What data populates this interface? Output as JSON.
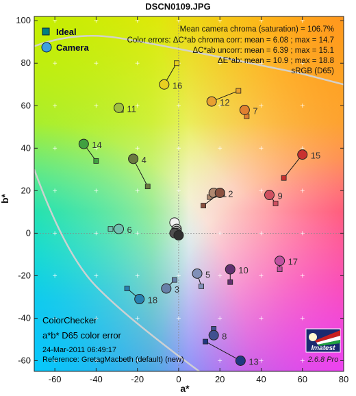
{
  "chart_data": {
    "type": "scatter",
    "title": "DSCN0109.JPG",
    "xlabel": "a*",
    "ylabel": "b*",
    "xlim": [
      -70,
      80
    ],
    "ylim": [
      -65,
      102
    ],
    "xticks": [
      -60,
      -40,
      -20,
      0,
      20,
      40,
      60,
      80
    ],
    "yticks": [
      -60,
      -40,
      -20,
      0,
      20,
      40,
      60,
      80,
      100
    ],
    "legend": {
      "position": "top-left",
      "items": [
        {
          "name": "Ideal",
          "marker": "square"
        },
        {
          "name": "Camera",
          "marker": "circle"
        }
      ]
    },
    "stats": [
      "Mean camera chroma (saturation) = 106.7%",
      "Color errors: ΔC*ab chroma corr:  mean = 6.08 ;  max = 14.7",
      "ΔC*ab uncorr:  mean = 6.39 ;  max = 15.1",
      "ΔE*ab:  mean = 10.9 ;  max = 18.8",
      "sRGB (D65)"
    ],
    "patches": [
      {
        "id": "1",
        "ideal": [
          15,
          17
        ],
        "camera": [
          17,
          19
        ],
        "color": "#b08870"
      },
      {
        "id": "2",
        "ideal": [
          12,
          13
        ],
        "camera": [
          20,
          19
        ],
        "color": "#8a5040"
      },
      {
        "id": "3",
        "ideal": [
          -2,
          -22
        ],
        "camera": [
          -6,
          -26
        ],
        "color": "#6880a8"
      },
      {
        "id": "4",
        "ideal": [
          -15,
          22
        ],
        "camera": [
          -22,
          35
        ],
        "color": "#6a7a40"
      },
      {
        "id": "5",
        "ideal": [
          11,
          -25
        ],
        "camera": [
          9,
          -19
        ],
        "color": "#8090b8"
      },
      {
        "id": "6",
        "ideal": [
          -33,
          2
        ],
        "camera": [
          -29,
          2
        ],
        "color": "#70c0b0"
      },
      {
        "id": "7",
        "ideal": [
          33,
          55
        ],
        "camera": [
          32,
          58
        ],
        "color": "#e08030"
      },
      {
        "id": "8",
        "ideal": [
          17,
          -45
        ],
        "camera": [
          17,
          -48
        ],
        "color": "#405090"
      },
      {
        "id": "9",
        "ideal": [
          47,
          14
        ],
        "camera": [
          44,
          18
        ],
        "color": "#d05060"
      },
      {
        "id": "10",
        "ideal": [
          25,
          -23
        ],
        "camera": [
          25,
          -17
        ],
        "color": "#603070"
      },
      {
        "id": "11",
        "ideal": [
          -28,
          58
        ],
        "camera": [
          -29,
          59
        ],
        "color": "#a0c040"
      },
      {
        "id": "12",
        "ideal": [
          29,
          67
        ],
        "camera": [
          16,
          62
        ],
        "color": "#e8a030"
      },
      {
        "id": "13",
        "ideal": [
          13,
          -51
        ],
        "camera": [
          30,
          -60
        ],
        "color": "#203880"
      },
      {
        "id": "14",
        "ideal": [
          -40,
          34
        ],
        "camera": [
          -46,
          42
        ],
        "color": "#40a040"
      },
      {
        "id": "15",
        "ideal": [
          51,
          26
        ],
        "camera": [
          60,
          37
        ],
        "color": "#c83030"
      },
      {
        "id": "16",
        "ideal": [
          -1,
          80
        ],
        "camera": [
          -7,
          70
        ],
        "color": "#e8d020"
      },
      {
        "id": "17",
        "ideal": [
          49,
          -17
        ],
        "camera": [
          49,
          -13
        ],
        "color": "#c050a0"
      },
      {
        "id": "18",
        "ideal": [
          -25,
          -26
        ],
        "camera": [
          -19,
          -31
        ],
        "color": "#2880b0"
      },
      {
        "id": "19",
        "ideal": [
          0,
          1
        ],
        "camera": [
          -2,
          5
        ],
        "color": "#f2f2f2"
      },
      {
        "id": "20",
        "ideal": [
          0,
          1
        ],
        "camera": [
          -1,
          2
        ],
        "color": "#c8c8c8"
      },
      {
        "id": "21",
        "ideal": [
          0,
          0
        ],
        "camera": [
          -1,
          1
        ],
        "color": "#a0a0a0"
      },
      {
        "id": "22",
        "ideal": [
          0,
          0
        ],
        "camera": [
          -1,
          0
        ],
        "color": "#787878"
      },
      {
        "id": "23",
        "ideal": [
          0,
          0
        ],
        "camera": [
          -2,
          0
        ],
        "color": "#505050"
      },
      {
        "id": "24",
        "ideal": [
          0,
          -1
        ],
        "camera": [
          0,
          -1
        ],
        "color": "#303030"
      }
    ],
    "annotation": {
      "line1": "ColorChecker",
      "line2": "a*b* D65 color error",
      "line3": "24-Mar-2011 06:49:17",
      "line4": "Reference: GretagMacbeth (default) (new)"
    },
    "logo": {
      "text": "Imatest",
      "version": "2.6.8  Pro"
    }
  }
}
